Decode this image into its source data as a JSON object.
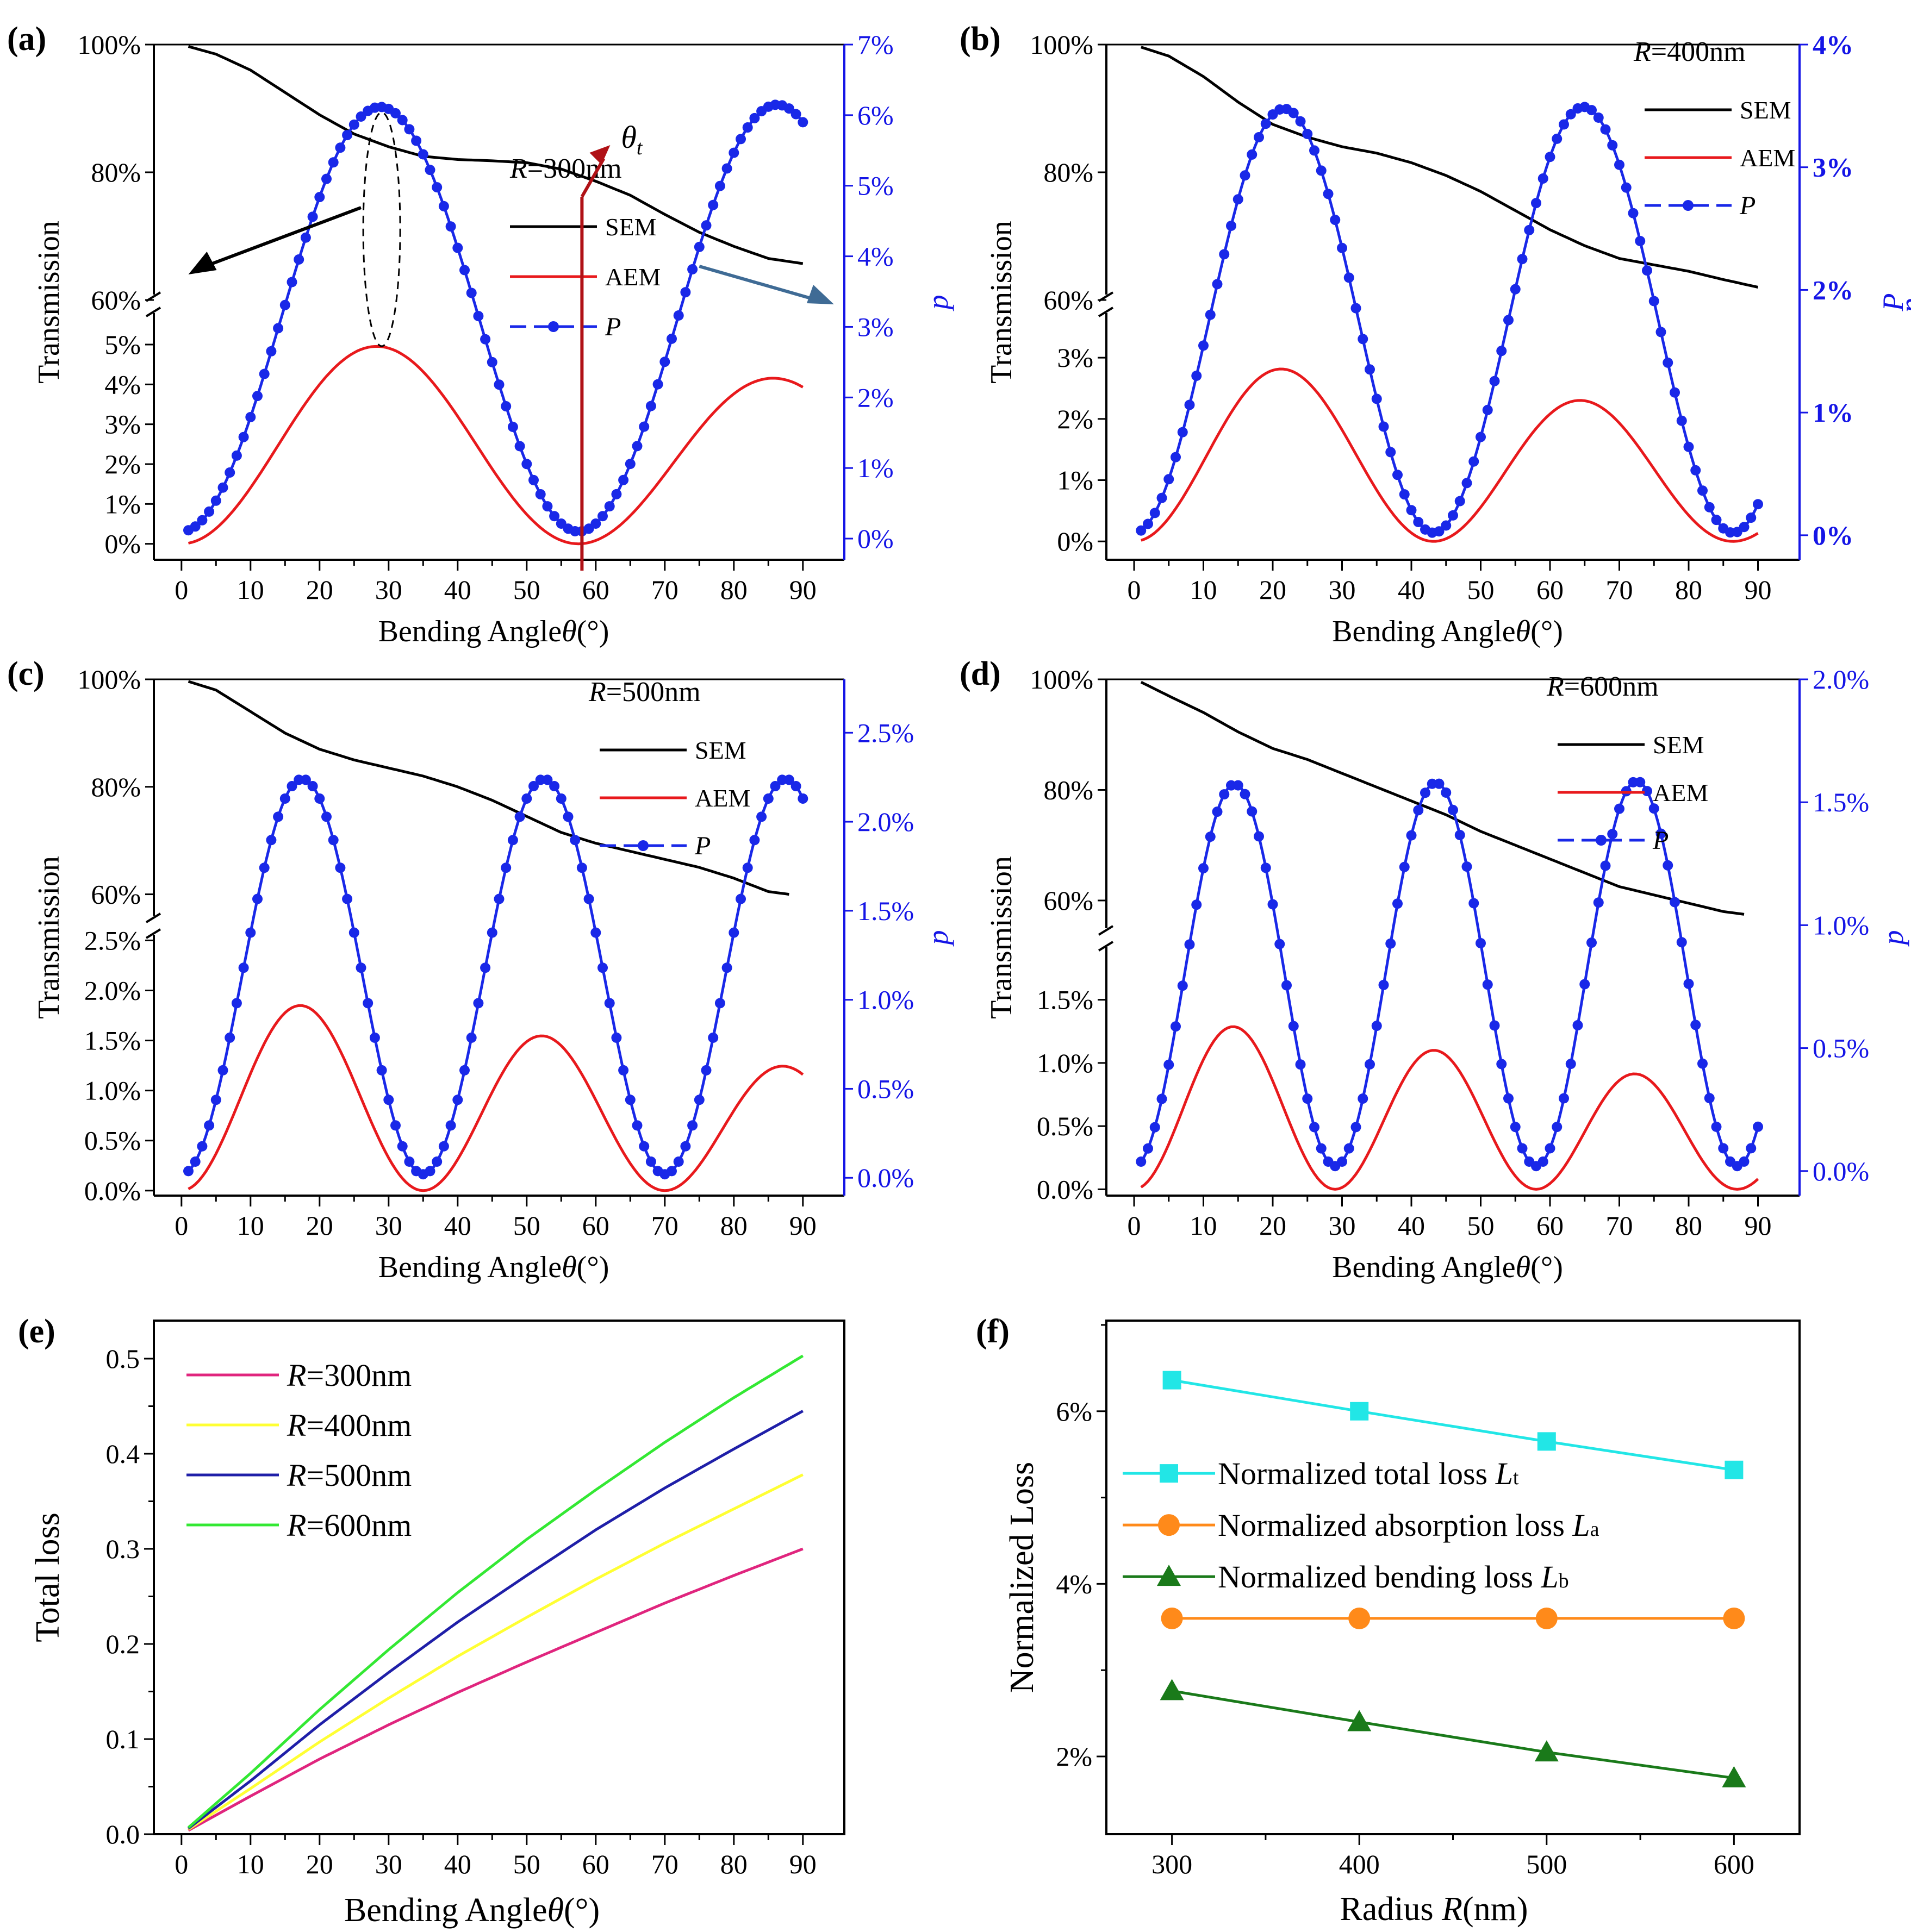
{
  "figure": {
    "colors": {
      "sem": "#000000",
      "aem": "#e8191c",
      "p": "#1928e8",
      "p_axis": "#1515e6",
      "annotation_red": "#b01116",
      "annotation_blue": "#3f6b95",
      "r300": "#e0257e",
      "r400": "#ffff33",
      "r500": "#1f1fa8",
      "r600": "#33e833",
      "lt": "#22e6e6",
      "la": "#ff8a1a",
      "lb": "#1a7a1a"
    }
  },
  "chart_data": [
    {
      "id": "a",
      "panel_label": "(a)",
      "type": "line",
      "xlabel_prefix": "Bending Angle",
      "xlabel_symbol": "θ",
      "xlabel_unit": "(°)",
      "x_ticks": [
        "0",
        "10",
        "20",
        "30",
        "40",
        "50",
        "60",
        "70",
        "80",
        "90"
      ],
      "ylabel_left": "Transmission",
      "ylabel_right": "p",
      "upper_ticks": [
        "60%",
        "80%",
        "100%"
      ],
      "upper_ylim": [
        60,
        100
      ],
      "lower_ticks": [
        "0%",
        "1%",
        "2%",
        "3%",
        "4%",
        "5%"
      ],
      "lower_ylim": [
        -0.4,
        5.9
      ],
      "right_ticks": [
        "0%",
        "1%",
        "2%",
        "3%",
        "4%",
        "5%",
        "6%",
        "7%"
      ],
      "right_ylim": [
        -0.3,
        7
      ],
      "radius_text": "R=300nm",
      "legend": [
        "SEM",
        "AEM",
        "P"
      ],
      "annotation": "θt",
      "series": [
        {
          "name": "SEM",
          "x": [
            1,
            5,
            10,
            15,
            20,
            25,
            30,
            35,
            40,
            45,
            50,
            55,
            60,
            65,
            70,
            75,
            80,
            85,
            90
          ],
          "y": [
            99.7,
            98.5,
            96,
            92.5,
            89,
            86,
            84,
            82.5,
            82,
            81.8,
            81.5,
            80.5,
            78.6,
            76.4,
            73.4,
            70.6,
            68.4,
            66.5,
            65.7
          ]
        },
        {
          "name": "AEM",
          "period": 57.5,
          "amplitude_start": 5.35,
          "amplitude_end": 4.1
        },
        {
          "name": "P",
          "period": 57.5,
          "amplitude_start": 6.0,
          "amplitude_end": 6.05,
          "offset": 0.1
        }
      ]
    },
    {
      "id": "b",
      "panel_label": "(b)",
      "type": "line",
      "xlabel_prefix": "Bending Angle",
      "xlabel_symbol": "θ",
      "xlabel_unit": "(°)",
      "x_ticks": [
        "0",
        "10",
        "20",
        "30",
        "40",
        "50",
        "60",
        "70",
        "80",
        "90"
      ],
      "ylabel_left": "Transmission",
      "ylabel_right": "P",
      "ylabel_right2": "p",
      "upper_ticks": [
        "60%",
        "80%",
        "100%"
      ],
      "upper_ylim": [
        60,
        100
      ],
      "lower_ticks": [
        "0%",
        "1%",
        "2%",
        "3%"
      ],
      "lower_ylim": [
        -0.3,
        3.8
      ],
      "right_ticks": [
        "0%",
        "1%",
        "2%",
        "3%",
        "4%"
      ],
      "right_ylim": [
        -0.2,
        4
      ],
      "radius_text": "R=400nm",
      "legend": [
        "SEM",
        "AEM",
        "P"
      ],
      "series": [
        {
          "name": "SEM",
          "x": [
            1,
            5,
            10,
            15,
            20,
            25,
            30,
            35,
            40,
            45,
            50,
            55,
            60,
            65,
            70,
            75,
            80,
            85,
            90
          ],
          "y": [
            99.6,
            98.2,
            95,
            91,
            87.5,
            85.5,
            84,
            83,
            81.5,
            79.5,
            77,
            74,
            71,
            68.5,
            66.5,
            65.5,
            64.5,
            63.2,
            62
          ]
        },
        {
          "name": "AEM",
          "period": 43.2,
          "amplitude_start": 3.07,
          "amplitude_end": 2.0
        },
        {
          "name": "P",
          "period": 43.2,
          "amplitude_start": 3.45,
          "amplitude_end": 3.48,
          "offset": 0.02
        }
      ]
    },
    {
      "id": "c",
      "panel_label": "(c)",
      "type": "line",
      "xlabel_prefix": "Bending Angle",
      "xlabel_symbol": "θ",
      "xlabel_unit": "(°)",
      "x_ticks": [
        "0",
        "10",
        "20",
        "30",
        "40",
        "50",
        "60",
        "70",
        "80",
        "90"
      ],
      "ylabel_left": "Transmission",
      "ylabel_right": "p",
      "upper_ticks": [
        "60%",
        "80%",
        "100%"
      ],
      "upper_ylim": [
        55,
        100
      ],
      "lower_ticks": [
        "0.0%",
        "0.5%",
        "1.0%",
        "1.5%",
        "2.0%",
        "2.5%"
      ],
      "lower_ylim": [
        -0.05,
        2.6
      ],
      "right_ticks": [
        "0.0%",
        "0.5%",
        "1.0%",
        "1.5%",
        "2.0%",
        "2.5%"
      ],
      "right_ylim": [
        -0.1,
        2.8
      ],
      "radius_text": "R=500nm",
      "legend": [
        "SEM",
        "AEM",
        "P"
      ],
      "series": [
        {
          "name": "SEM",
          "x": [
            1,
            5,
            10,
            15,
            20,
            25,
            30,
            35,
            40,
            45,
            50,
            55,
            60,
            65,
            70,
            75,
            80,
            85,
            88
          ],
          "y": [
            99.6,
            98,
            94,
            90,
            87,
            85,
            83.5,
            82,
            80,
            77.5,
            74.5,
            71.5,
            69.5,
            68,
            66.5,
            65,
            63,
            60.5,
            60
          ]
        },
        {
          "name": "AEM",
          "period": 35,
          "amplitude_start": 2.0,
          "amplitude_end": 1.22
        },
        {
          "name": "P",
          "period": 35,
          "amplitude_start": 2.22,
          "amplitude_end": 2.22,
          "offset": 0.02
        }
      ]
    },
    {
      "id": "d",
      "panel_label": "(d)",
      "type": "line",
      "xlabel_prefix": "Bending Angle",
      "xlabel_symbol": "θ",
      "xlabel_unit": "(°)",
      "x_ticks": [
        "0",
        "10",
        "20",
        "30",
        "40",
        "50",
        "60",
        "70",
        "80",
        "90"
      ],
      "ylabel_left": "Transmission",
      "ylabel_right": "p",
      "upper_ticks": [
        "60%",
        "80%",
        "100%"
      ],
      "upper_ylim": [
        54,
        100
      ],
      "lower_ticks": [
        "0.0%",
        "0.5%",
        "1.0%",
        "1.5%"
      ],
      "lower_ylim": [
        -0.05,
        1.95
      ],
      "right_ticks": [
        "0.0%",
        "0.5%",
        "1.0%",
        "1.5%",
        "2.0%"
      ],
      "right_ylim": [
        -0.1,
        2.0
      ],
      "radius_text": "R=600nm",
      "legend": [
        "SEM",
        "AEM",
        "P"
      ],
      "series": [
        {
          "name": "SEM",
          "x": [
            1,
            5,
            10,
            15,
            20,
            25,
            30,
            35,
            40,
            45,
            50,
            55,
            60,
            65,
            70,
            75,
            80,
            85,
            88
          ],
          "y": [
            99.5,
            97,
            94,
            90.5,
            87.5,
            85.5,
            83,
            80.5,
            78,
            75.5,
            72.5,
            70,
            67.5,
            65,
            62.5,
            61,
            59.5,
            58,
            57.5
          ]
        },
        {
          "name": "AEM",
          "period": 29,
          "amplitude_start": 1.38,
          "amplitude_end": 0.8
        },
        {
          "name": "P",
          "period": 29,
          "amplitude_start": 1.55,
          "amplitude_end": 1.57,
          "offset": 0.02
        }
      ]
    },
    {
      "id": "e",
      "panel_label": "(e)",
      "type": "line",
      "xlabel_prefix": "Bending Angle",
      "xlabel_symbol": "θ",
      "xlabel_unit": "(°)",
      "ylabel": "Total loss",
      "x_ticks": [
        "0",
        "10",
        "20",
        "30",
        "40",
        "50",
        "60",
        "70",
        "80",
        "90"
      ],
      "y_ticks": [
        "0.0",
        "0.1",
        "0.2",
        "0.3",
        "0.4",
        "0.5"
      ],
      "ylim": [
        0,
        0.54
      ],
      "xlim": [
        -4,
        96
      ],
      "series": [
        {
          "name": "R=300nm",
          "x": [
            1,
            10,
            20,
            30,
            40,
            50,
            60,
            70,
            80,
            90
          ],
          "y": [
            0.004,
            0.04,
            0.079,
            0.115,
            0.149,
            0.181,
            0.212,
            0.243,
            0.272,
            0.3
          ]
        },
        {
          "name": "R=400nm",
          "x": [
            1,
            10,
            20,
            30,
            40,
            50,
            60,
            70,
            80,
            90
          ],
          "y": [
            0.005,
            0.048,
            0.097,
            0.143,
            0.187,
            0.228,
            0.268,
            0.306,
            0.342,
            0.378
          ]
        },
        {
          "name": "R=500nm",
          "x": [
            1,
            10,
            20,
            30,
            40,
            50,
            60,
            70,
            80,
            90
          ],
          "y": [
            0.006,
            0.056,
            0.115,
            0.17,
            0.223,
            0.272,
            0.32,
            0.364,
            0.405,
            0.445
          ]
        },
        {
          "name": "R=600nm",
          "x": [
            1,
            10,
            20,
            30,
            40,
            50,
            60,
            70,
            80,
            90
          ],
          "y": [
            0.007,
            0.064,
            0.131,
            0.194,
            0.254,
            0.31,
            0.362,
            0.412,
            0.459,
            0.503
          ]
        }
      ]
    },
    {
      "id": "f",
      "panel_label": "(f)",
      "type": "line",
      "xlabel_prefix": "Radius ",
      "xlabel_symbol": "R",
      "xlabel_unit": "(nm)",
      "ylabel": "Normalized Loss",
      "x_ticks": [
        "300",
        "400",
        "500",
        "600"
      ],
      "xlim": [
        265,
        635
      ],
      "y_ticks": [
        "2%",
        "4%",
        "6%"
      ],
      "ylim": [
        1.1,
        7.05
      ],
      "series": [
        {
          "name": "Normalized total loss ",
          "sub": "t",
          "marker": "square",
          "x": [
            300,
            400,
            500,
            600
          ],
          "y": [
            6.36,
            6.0,
            5.65,
            5.32
          ]
        },
        {
          "name": "Normalized absorption loss ",
          "sub": "a",
          "marker": "circle",
          "x": [
            300,
            400,
            500,
            600
          ],
          "y": [
            3.6,
            3.6,
            3.6,
            3.6
          ]
        },
        {
          "name": "Normalized bending loss ",
          "sub": "b",
          "marker": "triangle",
          "x": [
            300,
            400,
            500,
            600
          ],
          "y": [
            2.76,
            2.4,
            2.05,
            1.75
          ]
        }
      ]
    }
  ]
}
